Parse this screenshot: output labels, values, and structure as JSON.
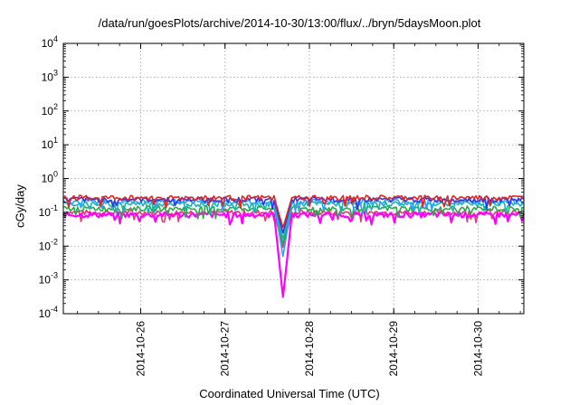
{
  "chart_data": {
    "type": "line",
    "title": "/data/run/goesPlots/archive/2014-10-30/13:00/flux/../bryn/5daysMoon.plot",
    "xlabel": "Coordinated Universal Time (UTC)",
    "ylabel": "cGy/day",
    "y_scale": "log",
    "ylim": [
      0.0001,
      10000
    ],
    "xlim": [
      "2014-10-25T02:00",
      "2014-10-30T13:00"
    ],
    "y_ticks": [
      {
        "base": "10",
        "exp": "-4"
      },
      {
        "base": "10",
        "exp": "-3"
      },
      {
        "base": "10",
        "exp": "-2"
      },
      {
        "base": "10",
        "exp": "-1"
      },
      {
        "base": "10",
        "exp": "0"
      },
      {
        "base": "10",
        "exp": "1"
      },
      {
        "base": "10",
        "exp": "2"
      },
      {
        "base": "10",
        "exp": "3"
      },
      {
        "base": "10",
        "exp": "4"
      }
    ],
    "x_ticks": [
      "2014-10-26",
      "2014-10-27",
      "2014-10-28",
      "2014-10-29",
      "2014-10-30"
    ],
    "grid": true,
    "legend": "none",
    "series_colors": [
      "#e8231e",
      "#2f37e8",
      "#16b5b0",
      "#2aa84a",
      "#e03b78",
      "#ff00ff",
      "#2aa4f4"
    ],
    "series": [
      {
        "baseline": 0.27,
        "color": "#e8231e"
      },
      {
        "baseline": 0.24,
        "color": "#2f37e8"
      },
      {
        "baseline": 0.18,
        "color": "#16b5b0"
      },
      {
        "baseline": 0.13,
        "color": "#2aa84a"
      },
      {
        "baseline": 0.1,
        "color": "#e03b78"
      },
      {
        "baseline": 0.085,
        "color": "#ff00ff"
      },
      {
        "baseline": 0.21,
        "color": "#2aa4f4"
      }
    ],
    "events": [
      {
        "x": "2014-10-27T16:30",
        "y_min": 0.0003,
        "description": "sharp dip"
      }
    ]
  }
}
